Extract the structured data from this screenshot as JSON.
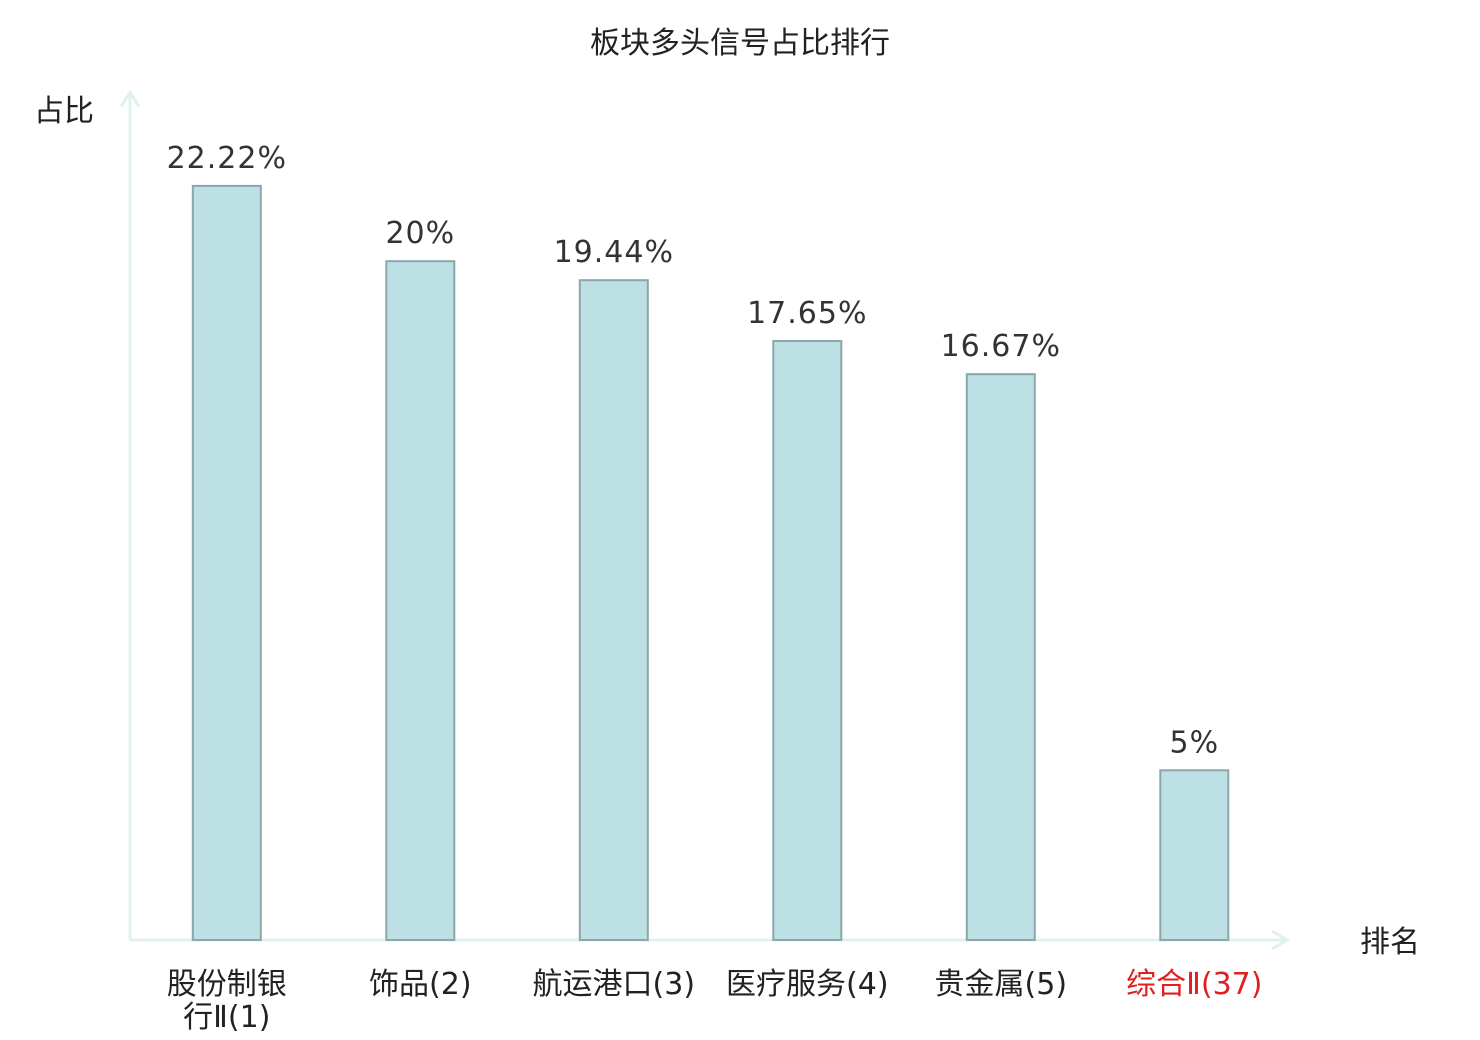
{
  "chart_data": {
    "type": "bar",
    "title": "板块多头信号占比排行",
    "xlabel": "排名",
    "ylabel": "占比",
    "categories": [
      "股份制银行Ⅱ(1)",
      "饰品(2)",
      "航运港口(3)",
      "医疗服务(4)",
      "贵金属(5)",
      "综合Ⅱ(37)"
    ],
    "category_lines": [
      [
        "股份制银",
        "行Ⅱ(1)"
      ],
      [
        "饰品(2)"
      ],
      [
        "航运港口(3)"
      ],
      [
        "医疗服务(4)"
      ],
      [
        "贵金属(5)"
      ],
      [
        "综合Ⅱ(37)"
      ]
    ],
    "values": [
      22.22,
      20,
      19.44,
      17.65,
      16.67,
      5
    ],
    "value_labels": [
      "22.22%",
      "20%",
      "19.44%",
      "17.65%",
      "16.67%",
      "5%"
    ],
    "highlight_index": 5,
    "ylim": [
      0,
      25
    ],
    "grid": false,
    "legend": "none",
    "colors": {
      "bar_fill": "#bce0e3",
      "bar_stroke": "#8aa7aa",
      "axis": "#e0f2f0",
      "text": "#222222",
      "highlight_text": "#e02020"
    }
  }
}
